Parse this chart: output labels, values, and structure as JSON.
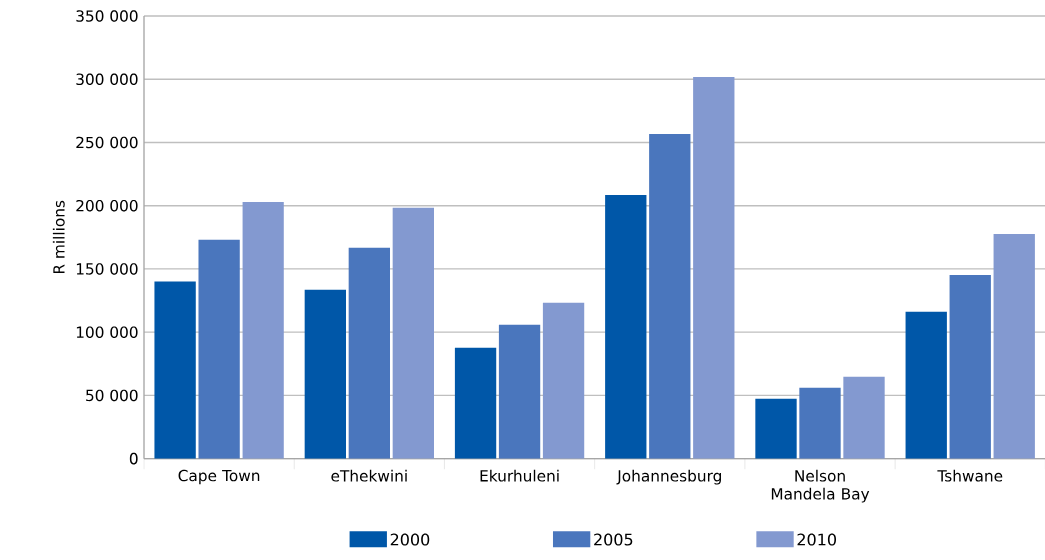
{
  "chart_data": {
    "type": "bar",
    "ylabel": "R millions",
    "categories": [
      "Cape Town",
      "eThekwini",
      "Ekurhuleni",
      "Johannesburg",
      "Nelson Mandela Bay",
      "Tshwane"
    ],
    "series": [
      {
        "name": "2000",
        "color": "#0057a8",
        "values": [
          140000,
          133500,
          87700,
          208500,
          47400,
          116100
        ]
      },
      {
        "name": "2005",
        "color": "#4a76bd",
        "values": [
          173000,
          166700,
          105800,
          256700,
          56100,
          145300
        ]
      },
      {
        "name": "2010",
        "color": "#8399d0",
        "values": [
          203000,
          198300,
          123200,
          301700,
          64800,
          177700
        ]
      }
    ],
    "ylim": [
      0,
      350000
    ],
    "yticks": [
      0,
      {
        "value": 50000,
        "label": "50 000"
      },
      {
        "value": 100000,
        "label": "100 000"
      },
      {
        "value": 150000,
        "label": "150 000"
      },
      {
        "value": 200000,
        "label": "200 000"
      },
      {
        "value": 250000,
        "label": "250 000"
      },
      {
        "value": 300000,
        "label": "300 000"
      },
      {
        "value": 350000,
        "label": "350 000"
      }
    ],
    "grid": "y",
    "legend": "bottom"
  }
}
